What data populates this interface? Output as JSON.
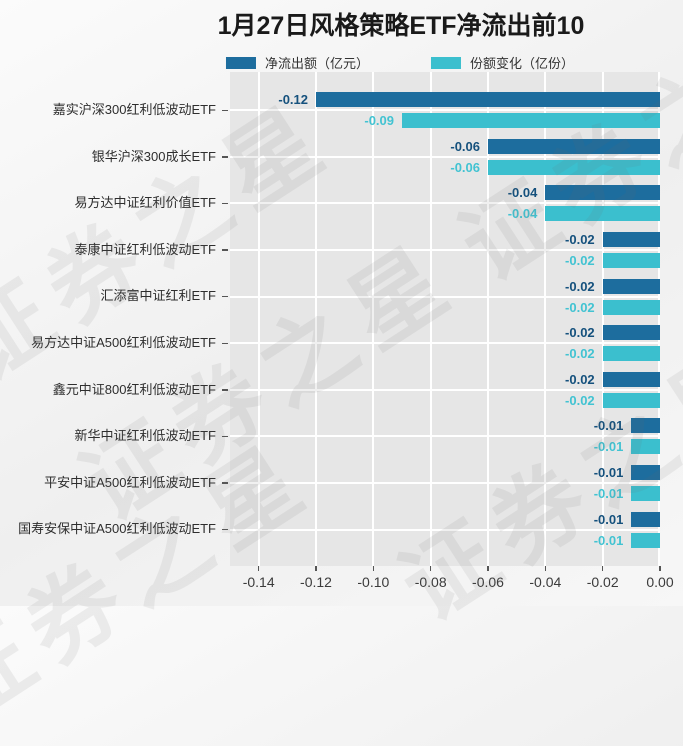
{
  "title": "1月27日风格策略ETF净流出前10",
  "watermark": "证券之星",
  "colors": {
    "net_outflow_bar": "#1d6d9e",
    "net_outflow_label": "#15517d",
    "share_change_bar": "#3bbfce",
    "share_change_label": "#42c3d2",
    "plot_background": "#e6e6e6",
    "gridline": "#ffffff"
  },
  "chart_data": {
    "type": "bar",
    "orientation": "horizontal",
    "title": "1月27日风格策略ETF净流出前10",
    "categories": [
      "嘉实沪深300红利低波动ETF",
      "银华沪深300成长ETF",
      "易方达中证红利价值ETF",
      "泰康中证红利低波动ETF",
      "汇添富中证红利ETF",
      "易方达中证A500红利低波动ETF",
      "鑫元中证800红利低波动ETF",
      "新华中证红利低波动ETF",
      "平安中证A500红利低波动ETF",
      "国寿安保中证A500红利低波动ETF"
    ],
    "series": [
      {
        "name": "净流出额（亿元）",
        "color": "#1d6d9e",
        "label_color": "#15517d",
        "values": [
          -0.12,
          -0.06,
          -0.04,
          -0.02,
          -0.02,
          -0.02,
          -0.02,
          -0.01,
          -0.01,
          -0.01
        ]
      },
      {
        "name": "份额变化（亿份）",
        "color": "#3bbfce",
        "label_color": "#42c3d2",
        "values": [
          -0.09,
          -0.06,
          -0.04,
          -0.02,
          -0.02,
          -0.02,
          -0.02,
          -0.01,
          -0.01,
          -0.01
        ]
      }
    ],
    "xlim": [
      -0.15,
      0
    ],
    "xticks": [
      "-0.14",
      "-0.12",
      "-0.10",
      "-0.08",
      "-0.06",
      "-0.04",
      "-0.02",
      "0.00"
    ],
    "grid": true,
    "legend_position": "top",
    "value_labels": true
  }
}
